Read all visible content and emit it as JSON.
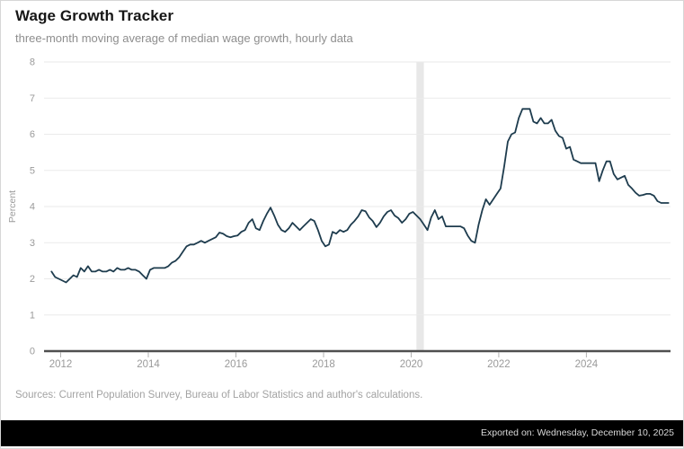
{
  "header": {
    "title": "Wage Growth Tracker",
    "subtitle": "three-month moving average of median wage growth, hourly data"
  },
  "footer": {
    "sources": "Sources: Current Population Survey, Bureau of Labor Statistics and author's calculations.",
    "exported": "Exported on: Wednesday, December 10, 2025"
  },
  "colors": {
    "line": "#1e3c4e",
    "gridline": "#eaeaea",
    "axis": "#4f4f4f",
    "tick": "#b3b3b3",
    "tick_label": "#9a9a9a",
    "recession_band": "#e8e8e8"
  },
  "chart_data": {
    "type": "line",
    "title": "Wage Growth Tracker",
    "subtitle": "three-month moving average of median wage growth, hourly data",
    "xlabel": "",
    "ylabel": "Percent",
    "ylim": [
      0,
      8
    ],
    "x_domain": [
      2011.62,
      2025.92
    ],
    "y_ticks": [
      0,
      1,
      2,
      3,
      4,
      5,
      6,
      7,
      8
    ],
    "x_ticks": [
      2012,
      2014,
      2016,
      2018,
      2020,
      2022,
      2024
    ],
    "grid": "horizontal",
    "legend": "none",
    "recession_band": {
      "from": 2020.12,
      "to": 2020.29,
      "note": "2020 recession shading"
    },
    "series": [
      {
        "name": "Median wage growth, 3-month moving average (percent)",
        "start_year": 2011.79,
        "step_years": 0.0833333,
        "values": [
          2.2,
          2.05,
          2.0,
          1.95,
          1.9,
          2.0,
          2.1,
          2.05,
          2.3,
          2.2,
          2.35,
          2.2,
          2.2,
          2.25,
          2.2,
          2.2,
          2.25,
          2.2,
          2.3,
          2.25,
          2.25,
          2.3,
          2.25,
          2.25,
          2.2,
          2.1,
          2.0,
          2.25,
          2.3,
          2.3,
          2.3,
          2.3,
          2.35,
          2.45,
          2.5,
          2.6,
          2.75,
          2.9,
          2.95,
          2.95,
          3.0,
          3.05,
          3.0,
          3.05,
          3.1,
          3.15,
          3.28,
          3.25,
          3.18,
          3.15,
          3.18,
          3.2,
          3.3,
          3.35,
          3.55,
          3.65,
          3.4,
          3.35,
          3.6,
          3.8,
          3.97,
          3.75,
          3.5,
          3.35,
          3.3,
          3.4,
          3.55,
          3.45,
          3.35,
          3.45,
          3.55,
          3.65,
          3.6,
          3.35,
          3.05,
          2.9,
          2.95,
          3.3,
          3.25,
          3.35,
          3.3,
          3.35,
          3.5,
          3.6,
          3.73,
          3.9,
          3.87,
          3.7,
          3.6,
          3.43,
          3.55,
          3.73,
          3.85,
          3.9,
          3.75,
          3.68,
          3.55,
          3.65,
          3.8,
          3.85,
          3.75,
          3.65,
          3.5,
          3.35,
          3.7,
          3.9,
          3.65,
          3.73,
          3.45,
          3.45,
          3.45,
          3.45,
          3.45,
          3.4,
          3.2,
          3.05,
          3.0,
          3.5,
          3.9,
          4.2,
          4.05,
          4.2,
          4.35,
          4.5,
          5.1,
          5.8,
          6.0,
          6.05,
          6.45,
          6.7,
          6.7,
          6.7,
          6.35,
          6.3,
          6.45,
          6.3,
          6.3,
          6.4,
          6.1,
          5.95,
          5.9,
          5.6,
          5.65,
          5.3,
          5.25,
          5.2,
          5.2,
          5.2,
          5.2,
          5.2,
          4.7,
          5.0,
          5.25,
          5.25,
          4.9,
          4.75,
          4.8,
          4.85,
          4.6,
          4.5,
          4.38,
          4.3,
          4.32,
          4.35,
          4.35,
          4.3,
          4.15,
          4.1,
          4.1,
          4.1
        ]
      }
    ]
  }
}
